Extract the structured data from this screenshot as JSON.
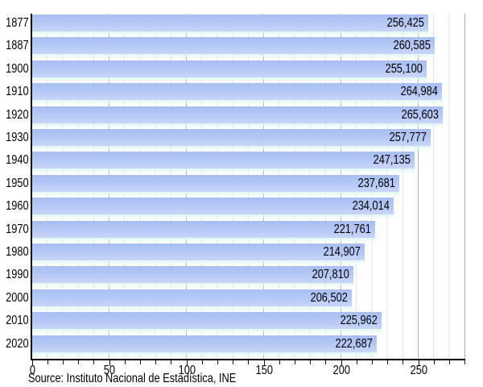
{
  "chart_data": {
    "type": "bar",
    "orientation": "horizontal",
    "title": "",
    "categories": [
      "1877",
      "1887",
      "1900",
      "1910",
      "1920",
      "1930",
      "1940",
      "1950",
      "1960",
      "1970",
      "1980",
      "1990",
      "2000",
      "2010",
      "2020"
    ],
    "values": [
      256425,
      260585,
      255100,
      264984,
      265603,
      257777,
      247135,
      237681,
      234014,
      221761,
      214907,
      207810,
      206502,
      225962,
      222687
    ],
    "value_labels": [
      "256,425",
      "260,585",
      "255,100",
      "264,984",
      "265,603",
      "257,777",
      "247,135",
      "237,681",
      "234,014",
      "221,761",
      "214,907",
      "207,810",
      "206,502",
      "225,962",
      "222,687"
    ],
    "x_axis": {
      "tick_labels": [
        "0",
        "50",
        "100",
        "150",
        "200",
        "250"
      ],
      "tick_values": [
        0,
        50,
        100,
        150,
        200,
        250
      ],
      "minor_tick_step": 10,
      "range": [
        0,
        280
      ],
      "axis_unit_is_thousands": true
    },
    "grid": "vertical, minor every 10 and major every 50",
    "legend": "none",
    "source": "Source: Instituto Nacional de Estadística, INE",
    "colors": {
      "bar_top": "#a8bef2",
      "bar_bottom": "#c8d6f9",
      "bar_reflection": "#def6f1",
      "minor_grid": "#e4e4e4",
      "major_grid": "#b4b4b4",
      "axis": "#000000",
      "text": "#000000",
      "background": "#ffffff"
    }
  }
}
